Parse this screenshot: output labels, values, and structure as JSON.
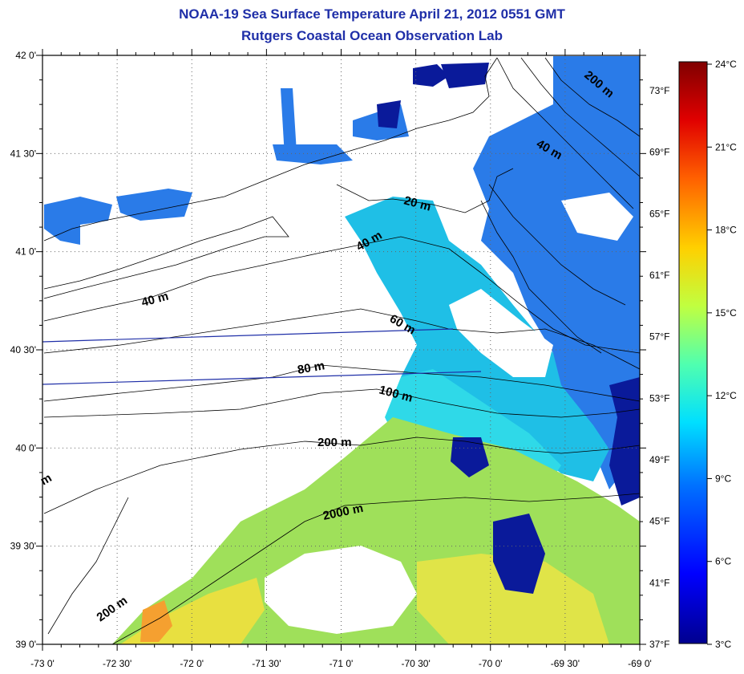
{
  "title": "NOAA-19 Sea Surface Temperature April 21, 2012 0551 GMT",
  "subtitle": "Rutgers Coastal Ocean Observation Lab",
  "lon_ticks": [
    "-73 0'",
    "-72 30'",
    "-72 0'",
    "-71 30'",
    "-71 0'",
    "-70 30'",
    "-70 0'",
    "-69 30'",
    "-69 0'"
  ],
  "lat_ticks": [
    "42 0'",
    "41 30'",
    "41 0'",
    "40 30'",
    "40 0'",
    "39 30'",
    "39 0'"
  ],
  "fahrenheit_ticks": [
    "73°F",
    "69°F",
    "65°F",
    "61°F",
    "57°F",
    "53°F",
    "49°F",
    "45°F",
    "41°F",
    "37°F"
  ],
  "celsius_ticks": [
    "24°C",
    "21°C",
    "18°C",
    "15°C",
    "12°C",
    "9°C",
    "6°C",
    "3°C"
  ],
  "contour_labels": [
    "200 m",
    "40 m",
    "20 m",
    "40 m",
    "40 m",
    "60 m",
    "80 m",
    "100 m",
    "200 m",
    "2000 m",
    "200 m",
    "m"
  ],
  "colorbar": {
    "min_c": 3,
    "max_c": 24,
    "colors": [
      "#00008f",
      "#0000ff",
      "#0070ff",
      "#00dfff",
      "#50ffaf",
      "#c0ff40",
      "#ffd000",
      "#ff6000",
      "#e00000",
      "#800000"
    ]
  },
  "sst_colors": {
    "cold": "#0a1a9a",
    "blue": "#2a7be8",
    "light_blue": "#1fbfe6",
    "cyan": "#2fd9e8",
    "green": "#7ee07a",
    "yellow_green": "#c8e84a",
    "yellow": "#f0e040",
    "orange": "#f5a030"
  },
  "map_extent": {
    "lon": [
      -73,
      -69
    ],
    "lat": [
      39,
      42
    ]
  }
}
